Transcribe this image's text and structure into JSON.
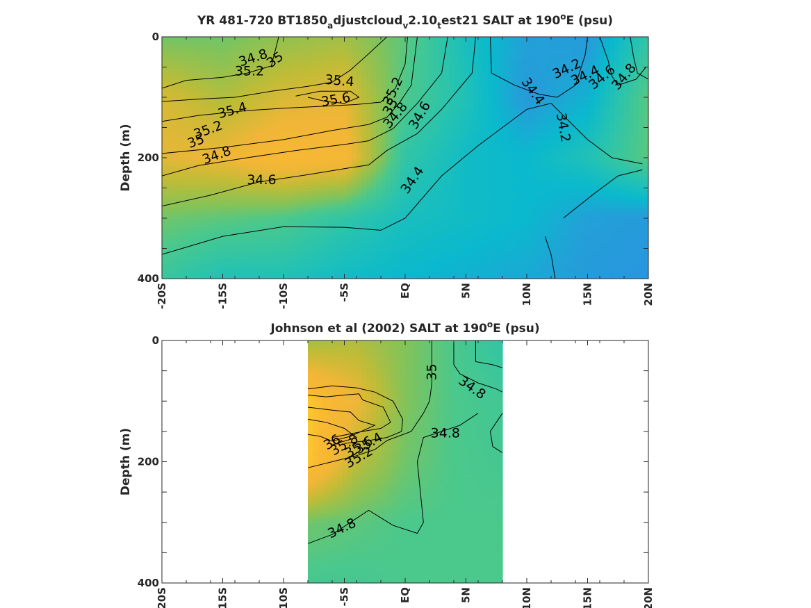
{
  "chart_data": [
    {
      "type": "heatmap",
      "id": "model",
      "title_parts": [
        "YR 481-720 BT1850",
        "a",
        "djustcloud",
        "v",
        "2.10",
        "t",
        "est21 SALT at 190",
        "o",
        "E (psu)"
      ],
      "ylabel": "Depth (m)",
      "y_ticks": [
        "0",
        "200",
        "400"
      ],
      "ylim": [
        0,
        400
      ],
      "x_ticks": [
        "-20S",
        "-15S",
        "-10S",
        "-5S",
        "EQ",
        "5N",
        "10N",
        "15N",
        "20N"
      ],
      "xlim": [
        -20,
        20
      ],
      "data_extent_lat": [
        -20,
        20
      ],
      "grid_lat": [
        -20,
        -15,
        -10,
        -5,
        0,
        5,
        10,
        15,
        20
      ],
      "grid_depth": [
        0,
        100,
        200,
        300,
        400
      ],
      "salinity": [
        [
          34.95,
          34.95,
          35.05,
          35.1,
          34.9,
          34.55,
          34.3,
          34.25,
          34.7
        ],
        [
          35.3,
          35.15,
          35.3,
          35.35,
          34.85,
          34.6,
          34.25,
          34.4,
          34.9
        ],
        [
          35.35,
          35.4,
          35.55,
          35.5,
          34.7,
          34.5,
          34.45,
          34.6,
          34.9
        ],
        [
          34.95,
          34.9,
          34.85,
          34.7,
          34.55,
          34.5,
          34.45,
          34.3,
          34.25
        ],
        [
          34.75,
          34.6,
          34.6,
          34.5,
          34.45,
          34.4,
          34.35,
          34.25,
          34.2
        ]
      ],
      "contour_labels": [
        {
          "text": "34.8",
          "lat": -12.5,
          "depth": 35,
          "angle": -18
        },
        {
          "text": "35",
          "lat": -10.7,
          "depth": 38,
          "angle": -35
        },
        {
          "text": "35.2",
          "lat": -12.8,
          "depth": 57,
          "angle": 0
        },
        {
          "text": "35.4",
          "lat": -5.4,
          "depth": 73,
          "angle": 5
        },
        {
          "text": "35.6",
          "lat": -5.7,
          "depth": 104,
          "angle": -10
        },
        {
          "text": "35.2",
          "lat": -1.0,
          "depth": 90,
          "angle": -65
        },
        {
          "text": "35",
          "lat": -1.2,
          "depth": 116,
          "angle": -60
        },
        {
          "text": "34.8",
          "lat": -0.8,
          "depth": 130,
          "angle": -50
        },
        {
          "text": "34.6",
          "lat": 1.2,
          "depth": 130,
          "angle": -60
        },
        {
          "text": "35.4",
          "lat": -14.2,
          "depth": 122,
          "angle": -15
        },
        {
          "text": "35.2",
          "lat": -16.2,
          "depth": 154,
          "angle": -20
        },
        {
          "text": "35",
          "lat": -17.2,
          "depth": 173,
          "angle": -20
        },
        {
          "text": "34.8",
          "lat": -15.5,
          "depth": 196,
          "angle": -20
        },
        {
          "text": "34.6",
          "lat": -11.8,
          "depth": 237,
          "angle": 0
        },
        {
          "text": "34.4",
          "lat": 0.6,
          "depth": 237,
          "angle": -55
        },
        {
          "text": "34.4",
          "lat": 10.5,
          "depth": 90,
          "angle": 55
        },
        {
          "text": "34.2",
          "lat": 13.0,
          "depth": 150,
          "angle": 80
        },
        {
          "text": "34.2",
          "lat": 13.3,
          "depth": 53,
          "angle": -25
        },
        {
          "text": "34.4",
          "lat": 14.8,
          "depth": 64,
          "angle": -25
        },
        {
          "text": "34.6",
          "lat": 16.2,
          "depth": 67,
          "angle": -40
        },
        {
          "text": "34.8",
          "lat": 18.0,
          "depth": 66,
          "angle": -50
        }
      ],
      "contour_lines": [
        [
          [
            -20,
            85
          ],
          [
            -18,
            72
          ],
          [
            -15,
            67
          ],
          [
            -13,
            60
          ],
          [
            -11,
            48
          ],
          [
            -10.4,
            0
          ]
        ],
        [
          [
            -20,
            107
          ],
          [
            -17,
            103
          ],
          [
            -14,
            100
          ],
          [
            -11,
            90
          ],
          [
            -8,
            82
          ],
          [
            -6,
            75
          ],
          [
            -4.5,
            55
          ],
          [
            -3,
            28
          ],
          [
            -1.5,
            0
          ]
        ],
        [
          [
            -20,
            140
          ],
          [
            -17,
            130
          ],
          [
            -13,
            122
          ],
          [
            -10,
            118
          ],
          [
            -7,
            115
          ],
          [
            -4,
            112
          ],
          [
            -2,
            108
          ],
          [
            -0.8,
            85
          ],
          [
            0,
            45
          ],
          [
            0.2,
            0
          ]
        ],
        [
          [
            -20,
            193
          ],
          [
            -15,
            183
          ],
          [
            -10,
            170
          ],
          [
            -6,
            155
          ],
          [
            -3,
            145
          ],
          [
            -1.5,
            133
          ],
          [
            -0.5,
            110
          ],
          [
            0.5,
            80
          ],
          [
            1,
            0
          ]
        ],
        [
          [
            -20,
            230
          ],
          [
            -17,
            213
          ],
          [
            -13,
            200
          ],
          [
            -9,
            188
          ],
          [
            -5,
            178
          ],
          [
            -3,
            172
          ],
          [
            -1,
            152
          ],
          [
            1,
            110
          ],
          [
            3,
            60
          ],
          [
            3.5,
            0
          ]
        ],
        [
          [
            -20,
            280
          ],
          [
            -16,
            262
          ],
          [
            -12,
            240
          ],
          [
            -8,
            228
          ],
          [
            -5,
            218
          ],
          [
            -3,
            212
          ],
          [
            -1.5,
            188
          ],
          [
            1,
            160
          ],
          [
            3,
            120
          ],
          [
            5.5,
            60
          ],
          [
            5.8,
            0
          ]
        ],
        [
          [
            -20,
            360
          ],
          [
            -15,
            330
          ],
          [
            -10,
            314
          ],
          [
            -5,
            315
          ],
          [
            -2,
            320
          ],
          [
            0,
            300
          ],
          [
            3,
            230
          ],
          [
            6,
            180
          ],
          [
            8,
            150
          ],
          [
            10,
            120
          ],
          [
            12,
            110
          ],
          [
            15,
            170
          ],
          [
            17,
            200
          ],
          [
            19.5,
            210
          ]
        ],
        [
          [
            -9,
            98
          ],
          [
            -7,
            90
          ],
          [
            -4.5,
            90
          ],
          [
            -3.8,
            100
          ],
          [
            -5,
            110
          ],
          [
            -6.5,
            107
          ],
          [
            -8,
            100
          ]
        ],
        [
          [
            7,
            0
          ],
          [
            7.1,
            60
          ],
          [
            9,
            80
          ],
          [
            11,
            95
          ],
          [
            12.5,
            100
          ],
          [
            14,
            80
          ],
          [
            14.8,
            30
          ],
          [
            15,
            0
          ]
        ],
        [
          [
            13,
            300
          ],
          [
            15.5,
            260
          ],
          [
            17.5,
            230
          ],
          [
            19.5,
            220
          ]
        ],
        [
          [
            12.5,
            420
          ],
          [
            12.0,
            360
          ],
          [
            11.5,
            330
          ]
        ],
        [
          [
            16,
            0
          ],
          [
            16.7,
            40
          ],
          [
            17,
            65
          ],
          [
            17.5,
            80
          ],
          [
            19,
            70
          ],
          [
            19.8,
            50
          ]
        ],
        [
          [
            18.5,
            0
          ],
          [
            18.8,
            35
          ],
          [
            19.1,
            60
          ],
          [
            20,
            70
          ]
        ]
      ]
    },
    {
      "type": "heatmap",
      "id": "obs",
      "title_parts": [
        "Johnson et al (2002) SALT at 190",
        "o",
        "E (psu)"
      ],
      "ylabel": "Depth (m)",
      "y_ticks": [
        "0",
        "200",
        "400"
      ],
      "ylim": [
        0,
        400
      ],
      "x_ticks": [
        "20S",
        "15S",
        "10S",
        "-5S",
        "EQ",
        "5N",
        "10N",
        "15N",
        "20N"
      ],
      "xlim": [
        -20,
        20
      ],
      "data_extent_lat": [
        -8,
        8
      ],
      "grid_lat": [
        -8,
        -4,
        0,
        4,
        8
      ],
      "grid_depth": [
        0,
        100,
        200,
        300,
        400
      ],
      "salinity": [
        [
          35.1,
          35.15,
          35.0,
          34.85,
          34.7
        ],
        [
          35.7,
          35.4,
          35.0,
          34.85,
          34.8
        ],
        [
          35.7,
          35.2,
          34.95,
          34.85,
          34.82
        ],
        [
          34.95,
          34.9,
          34.85,
          34.85,
          34.85
        ],
        [
          34.82,
          34.82,
          34.85,
          34.85,
          34.85
        ]
      ],
      "contour_labels": [
        {
          "text": "36",
          "lat": -6.0,
          "depth": 168,
          "angle": -30
        },
        {
          "text": "35.8",
          "lat": -5.0,
          "depth": 172,
          "angle": -30
        },
        {
          "text": "35.6",
          "lat": -3.8,
          "depth": 176,
          "angle": -30
        },
        {
          "text": "35.4",
          "lat": -3.0,
          "depth": 170,
          "angle": -30
        },
        {
          "text": "35.2",
          "lat": -3.8,
          "depth": 193,
          "angle": -30
        },
        {
          "text": "35",
          "lat": 2.2,
          "depth": 52,
          "angle": -90
        },
        {
          "text": "34.8",
          "lat": 5.5,
          "depth": 78,
          "angle": 35
        },
        {
          "text": "34.8",
          "lat": 3.3,
          "depth": 153,
          "angle": 0
        },
        {
          "text": "34.8",
          "lat": -5.2,
          "depth": 310,
          "angle": -25
        }
      ],
      "contour_lines": [
        [
          [
            -8,
            80
          ],
          [
            -6,
            75
          ],
          [
            -4,
            78
          ],
          [
            -2.5,
            85
          ],
          [
            -1,
            100
          ],
          [
            -0.2,
            130
          ],
          [
            -0.3,
            150
          ],
          [
            -1.5,
            160
          ],
          [
            -3,
            165
          ],
          [
            -5,
            170
          ]
        ],
        [
          [
            -8,
            90
          ],
          [
            -6.5,
            93
          ],
          [
            -5,
            90
          ],
          [
            -3.8,
            88
          ],
          [
            -3.5,
            98
          ],
          [
            -1.8,
            110
          ],
          [
            -1.2,
            135
          ],
          [
            -2,
            145
          ],
          [
            -3.5,
            150
          ],
          [
            -6,
            160
          ]
        ],
        [
          [
            -8,
            110
          ],
          [
            -6,
            115
          ],
          [
            -4.5,
            118
          ],
          [
            -3.8,
            132
          ],
          [
            -2.5,
            140
          ],
          [
            -4.5,
            158
          ],
          [
            -6,
            166
          ]
        ],
        [
          [
            -8,
            130
          ],
          [
            -6.5,
            135
          ],
          [
            -5,
            145
          ],
          [
            -4,
            160
          ],
          [
            -6,
            172
          ]
        ],
        [
          [
            -8,
            155
          ],
          [
            -7,
            158
          ],
          [
            -6,
            166
          ]
        ],
        [
          [
            -8,
            210
          ],
          [
            -6,
            200
          ],
          [
            -4,
            190
          ],
          [
            -2.5,
            180
          ],
          [
            -1.5,
            165
          ],
          [
            0.5,
            150
          ],
          [
            1,
            135
          ],
          [
            1.5,
            120
          ],
          [
            2,
            100
          ],
          [
            2.2,
            70
          ],
          [
            2.2,
            0
          ]
        ],
        [
          [
            -8,
            335
          ],
          [
            -6,
            320
          ],
          [
            -3,
            280
          ],
          [
            -1,
            305
          ],
          [
            1,
            318
          ],
          [
            1.5,
            300
          ],
          [
            1.2,
            240
          ],
          [
            1.0,
            200
          ],
          [
            1.5,
            160
          ],
          [
            3,
            150
          ],
          [
            4.5,
            140
          ],
          [
            6,
            120
          ]
        ],
        [
          [
            4,
            0
          ],
          [
            4,
            40
          ],
          [
            4.5,
            55
          ],
          [
            6,
            70
          ],
          [
            7.5,
            80
          ],
          [
            8,
            85
          ]
        ],
        [
          [
            5.8,
            0
          ],
          [
            5.8,
            35
          ],
          [
            7.2,
            40
          ],
          [
            8,
            45
          ]
        ],
        [
          [
            8,
            120
          ],
          [
            7,
            150
          ],
          [
            7.2,
            175
          ],
          [
            8,
            185
          ]
        ]
      ]
    }
  ]
}
